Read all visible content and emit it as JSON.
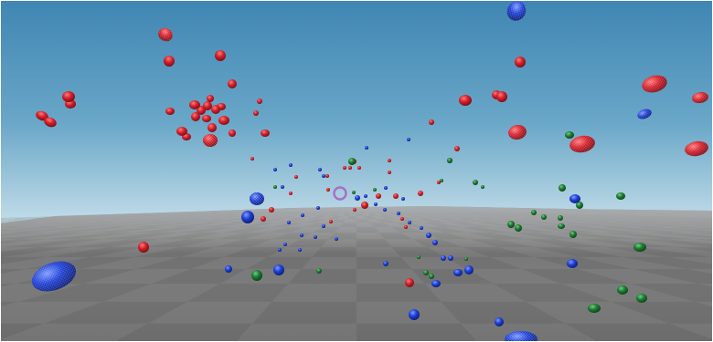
{
  "scene": {
    "type": "3d-viewport",
    "sky_color_top": "#3f87b4",
    "sky_color_horizon": "#b7d4e2",
    "ground_color_light": "#8a8a8a",
    "ground_color_dark": "#5f5f5f",
    "reticle_color": "#a86fc6",
    "sphere_colors": {
      "red": "#d4202b",
      "blue": "#1d3fd6",
      "green": "#1f7a33"
    },
    "crosshair": "ring",
    "object_type": "spheres"
  }
}
